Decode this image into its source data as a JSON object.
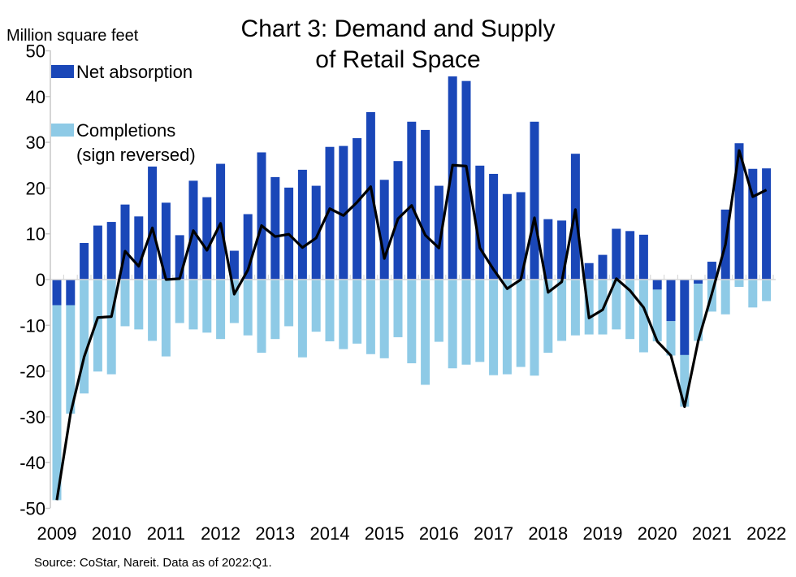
{
  "chart_data": {
    "type": "bar",
    "subtype": "stacked-bar-with-line",
    "title": [
      "Chart 3: Demand and Supply",
      "of Retail Space"
    ],
    "ylabel": "Million square feet",
    "ylim": [
      -50,
      50
    ],
    "yticks": [
      50,
      40,
      30,
      20,
      10,
      0,
      -10,
      -20,
      -30,
      -40,
      -50
    ],
    "xtick_labels": [
      "2009",
      "2010",
      "2011",
      "2012",
      "2013",
      "2014",
      "2015",
      "2016",
      "2017",
      "2018",
      "2019",
      "2020",
      "2021",
      "2022"
    ],
    "x_start": "2009:Q1",
    "x_end": "2022:Q1",
    "frequency": "quarterly",
    "grid": false,
    "legend_placement": "top-left",
    "series": [
      {
        "name": "Net absorption",
        "kind": "bar",
        "color": "#1a47b8",
        "values": [
          -5.6,
          -5.6,
          8.0,
          11.8,
          12.6,
          16.4,
          13.8,
          24.7,
          16.8,
          9.7,
          21.6,
          18.0,
          25.3,
          6.3,
          14.3,
          27.8,
          22.4,
          20.1,
          24.0,
          20.5,
          29.0,
          29.2,
          30.9,
          36.6,
          21.8,
          25.9,
          34.5,
          32.7,
          20.5,
          44.4,
          43.4,
          24.9,
          23.1,
          18.7,
          19.1,
          34.5,
          13.2,
          12.9,
          27.5,
          3.6,
          5.4,
          11.1,
          10.6,
          9.8,
          -2.2,
          -9.1,
          -16.5,
          -0.9,
          3.9,
          15.3,
          29.8,
          24.2,
          24.3
        ]
      },
      {
        "name": "Completions\n(sign reversed)",
        "legend_lines": [
          "Completions",
          "(sign reversed)"
        ],
        "kind": "bar",
        "color": "#8ecae6",
        "values": [
          -42.6,
          -23.7,
          -24.9,
          -20.1,
          -20.7,
          -10.2,
          -10.9,
          -13.4,
          -16.8,
          -9.5,
          -10.9,
          -11.6,
          -13.0,
          -9.5,
          -12.2,
          -16.0,
          -13.0,
          -10.2,
          -17.0,
          -11.4,
          -13.5,
          -15.2,
          -14.0,
          -16.3,
          -17.2,
          -12.6,
          -18.3,
          -23.0,
          -13.6,
          -19.4,
          -18.6,
          -18.0,
          -20.9,
          -20.7,
          -19.1,
          -21.0,
          -16.0,
          -13.4,
          -12.2,
          -12.0,
          -12.0,
          -10.9,
          -13.0,
          -15.9,
          -11.3,
          -7.5,
          -11.3,
          -12.5,
          -7.0,
          -7.6,
          -1.6,
          -6.1,
          -4.7
        ]
      },
      {
        "kind": "line",
        "color": "#000000",
        "derived": "net absorption minus completions"
      }
    ],
    "source": "Source: CoStar, Nareit. Data as of 2022:Q1."
  }
}
